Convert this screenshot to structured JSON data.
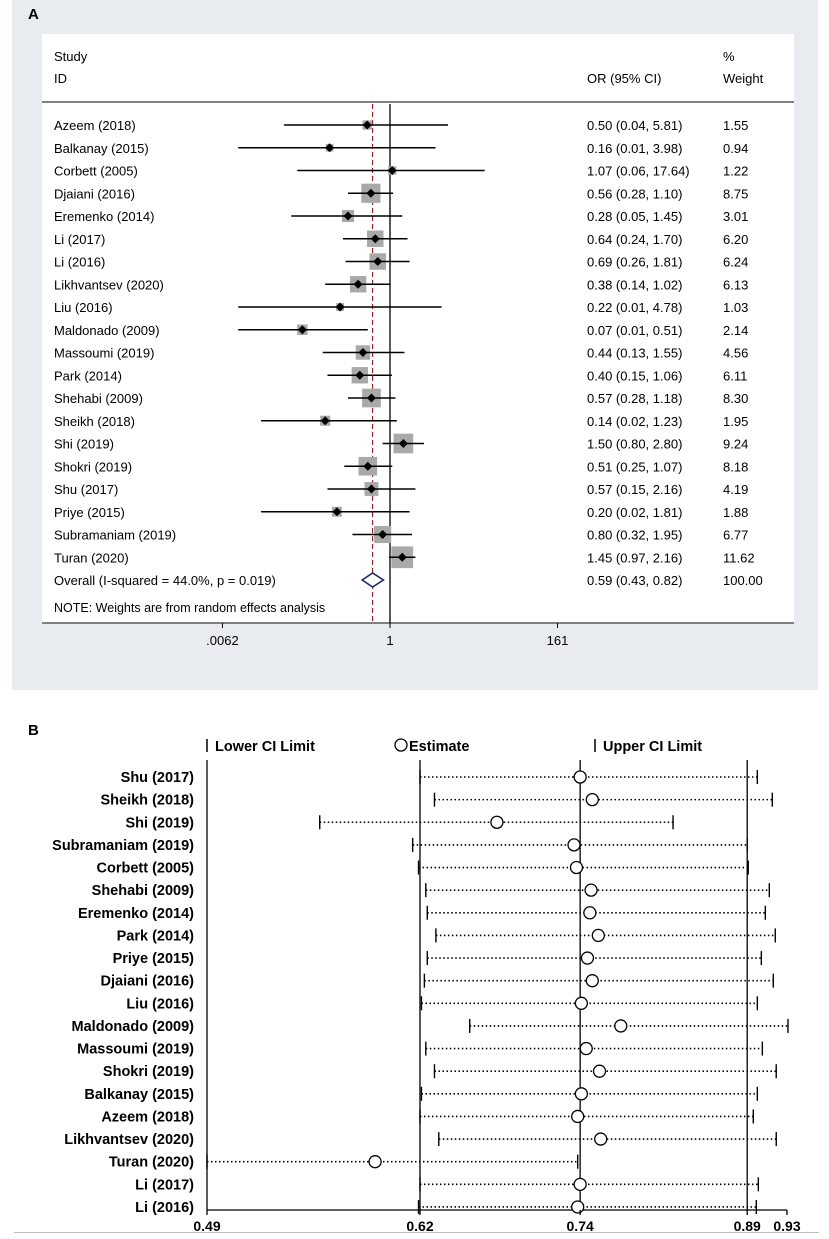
{
  "panel_a": {
    "label": "A",
    "header_study": "Study",
    "header_id": "ID",
    "header_or": "OR (95% CI)",
    "header_pct": "%",
    "header_weight": "Weight",
    "note": "NOTE: Weights are from random effects analysis"
  },
  "panel_b": {
    "label": "B",
    "legend_lower": "Lower CI Limit",
    "legend_estimate": "Estimate",
    "legend_upper": "Upper CI Limit"
  },
  "colors": {
    "panel_bg": "#e8ecf1",
    "box": "#a9a9a9",
    "diamond": "#1f2a6e",
    "ref_line": "#8b1a1a"
  },
  "chart_data": [
    {
      "type": "forest",
      "title": "A",
      "x_scale": "log",
      "ticks": [
        ".0062",
        "1",
        "161"
      ],
      "tick_values": [
        0.0062,
        1,
        161
      ],
      "reference_line": 1,
      "pooled_line": 0.59,
      "studies": [
        {
          "name": "Azeem (2018)",
          "or": 0.5,
          "lo": 0.04,
          "hi": 5.81,
          "text": "0.50 (0.04, 5.81)",
          "weight": "1.55",
          "w": 1.55
        },
        {
          "name": "Balkanay (2015)",
          "or": 0.16,
          "lo": 0.01,
          "hi": 3.98,
          "text": "0.16 (0.01, 3.98)",
          "weight": "0.94",
          "w": 0.94
        },
        {
          "name": "Corbett (2005)",
          "or": 1.07,
          "lo": 0.06,
          "hi": 17.64,
          "text": "1.07 (0.06, 17.64)",
          "weight": "1.22",
          "w": 1.22
        },
        {
          "name": "Djaiani (2016)",
          "or": 0.56,
          "lo": 0.28,
          "hi": 1.1,
          "text": "0.56 (0.28, 1.10)",
          "weight": "8.75",
          "w": 8.75
        },
        {
          "name": "Eremenko (2014)",
          "or": 0.28,
          "lo": 0.05,
          "hi": 1.45,
          "text": "0.28 (0.05, 1.45)",
          "weight": "3.01",
          "w": 3.01
        },
        {
          "name": "Li (2017)",
          "or": 0.64,
          "lo": 0.24,
          "hi": 1.7,
          "text": "0.64 (0.24, 1.70)",
          "weight": "6.20",
          "w": 6.2
        },
        {
          "name": "Li (2016)",
          "or": 0.69,
          "lo": 0.26,
          "hi": 1.81,
          "text": "0.69 (0.26, 1.81)",
          "weight": "6.24",
          "w": 6.24
        },
        {
          "name": "Likhvantsev (2020)",
          "or": 0.38,
          "lo": 0.14,
          "hi": 1.02,
          "text": "0.38 (0.14, 1.02)",
          "weight": "6.13",
          "w": 6.13
        },
        {
          "name": "Liu (2016)",
          "or": 0.22,
          "lo": 0.01,
          "hi": 4.78,
          "text": "0.22 (0.01, 4.78)",
          "weight": "1.03",
          "w": 1.03
        },
        {
          "name": "Maldonado (2009)",
          "or": 0.07,
          "lo": 0.01,
          "hi": 0.51,
          "text": "0.07 (0.01, 0.51)",
          "weight": "2.14",
          "w": 2.14
        },
        {
          "name": "Massoumi (2019)",
          "or": 0.44,
          "lo": 0.13,
          "hi": 1.55,
          "text": "0.44 (0.13, 1.55)",
          "weight": "4.56",
          "w": 4.56
        },
        {
          "name": "Park (2014)",
          "or": 0.4,
          "lo": 0.15,
          "hi": 1.06,
          "text": "0.40 (0.15, 1.06)",
          "weight": "6.11",
          "w": 6.11
        },
        {
          "name": "Shehabi (2009)",
          "or": 0.57,
          "lo": 0.28,
          "hi": 1.18,
          "text": "0.57 (0.28, 1.18)",
          "weight": "8.30",
          "w": 8.3
        },
        {
          "name": "Sheikh (2018)",
          "or": 0.14,
          "lo": 0.02,
          "hi": 1.23,
          "text": "0.14 (0.02, 1.23)",
          "weight": "1.95",
          "w": 1.95
        },
        {
          "name": "Shi (2019)",
          "or": 1.5,
          "lo": 0.8,
          "hi": 2.8,
          "text": "1.50 (0.80, 2.80)",
          "weight": "9.24",
          "w": 9.24
        },
        {
          "name": "Shokri (2019)",
          "or": 0.51,
          "lo": 0.25,
          "hi": 1.07,
          "text": "0.51 (0.25, 1.07)",
          "weight": "8.18",
          "w": 8.18
        },
        {
          "name": "Shu (2017)",
          "or": 0.57,
          "lo": 0.15,
          "hi": 2.16,
          "text": "0.57 (0.15, 2.16)",
          "weight": "4.19",
          "w": 4.19
        },
        {
          "name": "Priye (2015)",
          "or": 0.2,
          "lo": 0.02,
          "hi": 1.81,
          "text": "0.20 (0.02, 1.81)",
          "weight": "1.88",
          "w": 1.88
        },
        {
          "name": "Subramaniam (2019)",
          "or": 0.8,
          "lo": 0.32,
          "hi": 1.95,
          "text": "0.80 (0.32, 1.95)",
          "weight": "6.77",
          "w": 6.77
        },
        {
          "name": "Turan (2020)",
          "or": 1.45,
          "lo": 0.97,
          "hi": 2.16,
          "text": "1.45 (0.97, 2.16)",
          "weight": "11.62",
          "w": 11.62
        }
      ],
      "overall": {
        "name": "Overall  (I-squared = 44.0%, p = 0.019)",
        "or": 0.59,
        "lo": 0.43,
        "hi": 0.82,
        "text": "0.59 (0.43, 0.82)",
        "weight": "100.00"
      }
    },
    {
      "type": "sensitivity",
      "title": "B",
      "x_scale": "log",
      "xlim": [
        0.49,
        0.93
      ],
      "ticks": [
        "0.49",
        "0.62",
        "0.74",
        "0.89",
        "0.93"
      ],
      "tick_values": [
        0.49,
        0.62,
        0.74,
        0.89,
        0.93
      ],
      "ref_lines": [
        0.62,
        0.74,
        0.89
      ],
      "rows": [
        {
          "name": "Shu (2017)",
          "est": 0.74,
          "lo": 0.62,
          "hi": 0.9
        },
        {
          "name": "Sheikh (2018)",
          "est": 0.75,
          "lo": 0.63,
          "hi": 0.915
        },
        {
          "name": "Shi (2019)",
          "est": 0.675,
          "lo": 0.555,
          "hi": 0.82
        },
        {
          "name": "Subramaniam (2019)",
          "est": 0.735,
          "lo": 0.615,
          "hi": 0.89
        },
        {
          "name": "Corbett (2005)",
          "est": 0.737,
          "lo": 0.619,
          "hi": 0.891
        },
        {
          "name": "Shehabi (2009)",
          "est": 0.749,
          "lo": 0.624,
          "hi": 0.912
        },
        {
          "name": "Eremenko (2014)",
          "est": 0.748,
          "lo": 0.625,
          "hi": 0.908
        },
        {
          "name": "Park (2014)",
          "est": 0.755,
          "lo": 0.631,
          "hi": 0.918
        },
        {
          "name": "Priye (2015)",
          "est": 0.746,
          "lo": 0.625,
          "hi": 0.904
        },
        {
          "name": "Djaiani (2016)",
          "est": 0.75,
          "lo": 0.623,
          "hi": 0.916
        },
        {
          "name": "Liu (2016)",
          "est": 0.741,
          "lo": 0.621,
          "hi": 0.9
        },
        {
          "name": "Maldonado (2009)",
          "est": 0.774,
          "lo": 0.655,
          "hi": 0.931
        },
        {
          "name": "Massoumi (2019)",
          "est": 0.745,
          "lo": 0.624,
          "hi": 0.905
        },
        {
          "name": "Shokri (2019)",
          "est": 0.756,
          "lo": 0.63,
          "hi": 0.919
        },
        {
          "name": "Balkanay (2015)",
          "est": 0.741,
          "lo": 0.621,
          "hi": 0.9
        },
        {
          "name": "Azeem (2018)",
          "est": 0.738,
          "lo": 0.62,
          "hi": 0.896
        },
        {
          "name": "Likhvantsev (2020)",
          "est": 0.757,
          "lo": 0.633,
          "hi": 0.919
        },
        {
          "name": "Turan (2020)",
          "est": 0.59,
          "lo": 0.49,
          "hi": 0.738
        },
        {
          "name": "Li (2017)",
          "est": 0.74,
          "lo": 0.62,
          "hi": 0.901
        },
        {
          "name": "Li (2016)",
          "est": 0.738,
          "lo": 0.619,
          "hi": 0.899
        }
      ]
    }
  ]
}
